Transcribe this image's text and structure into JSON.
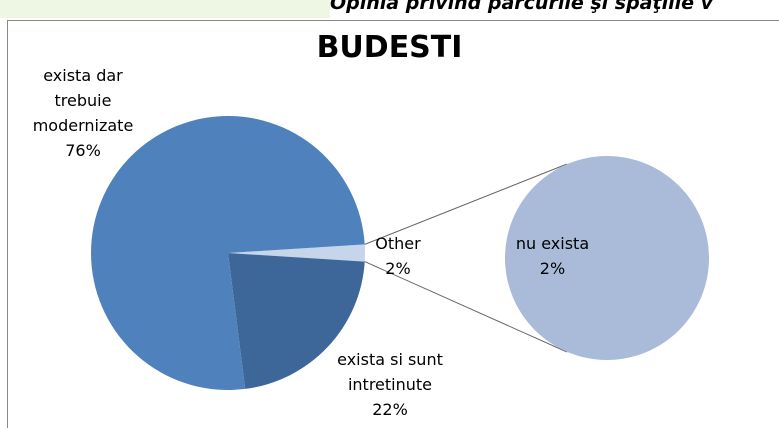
{
  "header_text": "Opinia privind parcurile şi spaţiile v",
  "chart_data": {
    "type": "pie-of-pie",
    "title": "BUDESTI",
    "categories": [
      "Other",
      "exista si sunt intretinute",
      "exista dar trebuie modernizate"
    ],
    "values": [
      2,
      22,
      76
    ],
    "value_labels": [
      "2%",
      "22%",
      "76%"
    ],
    "colors": [
      "#c6d5ea",
      "#3d6699",
      "#4f81bd"
    ],
    "secondary": {
      "categories": [
        "nu exista"
      ],
      "values": [
        2
      ],
      "value_labels": [
        "2%"
      ],
      "colors": [
        "#a9bbd9"
      ]
    }
  }
}
